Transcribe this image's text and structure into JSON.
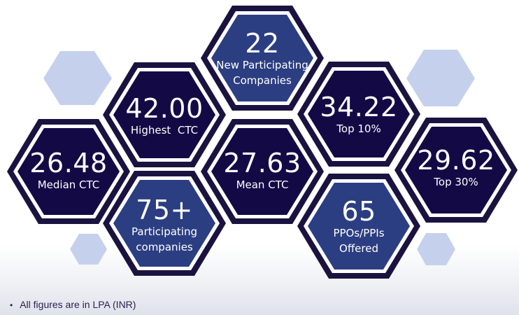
{
  "stats": [
    {
      "key": "new_companies",
      "value": "22",
      "label_lines": [
        "New Participating",
        "Companies"
      ]
    },
    {
      "key": "highest_ctc",
      "value": "42.00",
      "label_lines": [
        "Highest  CTC"
      ]
    },
    {
      "key": "top10",
      "value": "34.22",
      "label_lines": [
        "Top 10%"
      ]
    },
    {
      "key": "median_ctc",
      "value": "26.48",
      "label_lines": [
        "Median CTC"
      ]
    },
    {
      "key": "mean_ctc",
      "value": "27.63",
      "label_lines": [
        "Mean CTC"
      ]
    },
    {
      "key": "top30",
      "value": "29.62",
      "label_lines": [
        "Top 30%"
      ]
    },
    {
      "key": "participating",
      "value": "75+",
      "label_lines": [
        "Participating",
        "companies"
      ]
    },
    {
      "key": "ppos",
      "value": "65",
      "label_lines": [
        "PPOs/PPIs",
        "Offered"
      ]
    }
  ],
  "footnote": {
    "bullet": "•",
    "text": "All figures are in LPA (INR)"
  },
  "colors": {
    "dark_fill": "#130a45",
    "blue_fill": "#2c3e82",
    "hex_border": "#1a1340",
    "hex_ring": "#ffffff",
    "pale_hex": "#c5d1ec",
    "text": "#ffffff"
  }
}
